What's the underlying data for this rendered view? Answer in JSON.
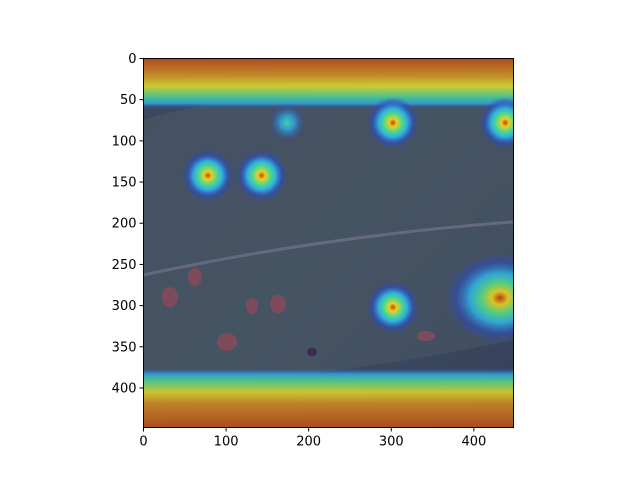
{
  "chart_data": {
    "type": "heatmap",
    "title": "",
    "xlabel": "",
    "ylabel": "",
    "xlim": [
      0,
      448
    ],
    "ylim": [
      448,
      0
    ],
    "x_ticks": [
      0,
      100,
      200,
      300,
      400
    ],
    "y_ticks": [
      0,
      50,
      100,
      150,
      200,
      250,
      300,
      350,
      400
    ],
    "x_tick_labels": [
      "0",
      "100",
      "200",
      "300",
      "400"
    ],
    "y_tick_labels": [
      "0",
      "50",
      "100",
      "150",
      "200",
      "250",
      "300",
      "350",
      "400"
    ],
    "grid": false,
    "colormap": "jet",
    "background": "leaf photograph with brown lesion spots",
    "hotspots": [
      {
        "x": 78,
        "y": 142,
        "intensity": 0.9
      },
      {
        "x": 143,
        "y": 142,
        "intensity": 0.8
      },
      {
        "x": 302,
        "y": 78,
        "intensity": 0.95
      },
      {
        "x": 302,
        "y": 302,
        "intensity": 0.95
      },
      {
        "x": 174,
        "y": 78,
        "intensity": 0.45
      },
      {
        "x": 438,
        "y": 78,
        "intensity": 0.85
      }
    ],
    "hot_regions": [
      {
        "edge": "top",
        "y_from": 0,
        "y_to": 30,
        "intensity": 0.85
      },
      {
        "edge": "bottom",
        "y_from": 400,
        "y_to": 448,
        "intensity": 0.9
      },
      {
        "edge": "right-lower",
        "x_from": 400,
        "x_to": 448,
        "y_from": 270,
        "y_to": 330,
        "intensity": 0.9
      }
    ]
  }
}
